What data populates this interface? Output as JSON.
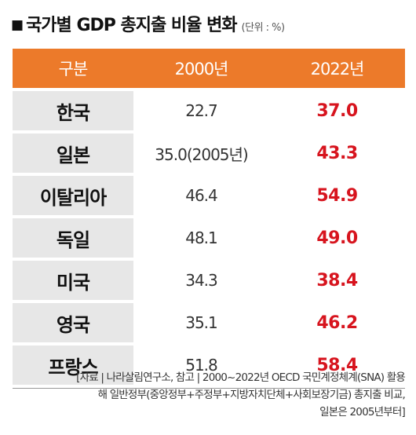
{
  "title": {
    "marker": "■",
    "text": "국가별 GDP 총지출 비율 변화",
    "unit": "(단위 : %)"
  },
  "table": {
    "headers": [
      "구분",
      "2000년",
      "2022년"
    ],
    "rows": [
      {
        "country": "한국",
        "y2000": "22.7",
        "y2022": "37.0"
      },
      {
        "country": "일본",
        "y2000": "35.0(2005년)",
        "y2022": "43.3"
      },
      {
        "country": "이탈리아",
        "y2000": "46.4",
        "y2022": "54.9"
      },
      {
        "country": "독일",
        "y2000": "48.1",
        "y2022": "49.0"
      },
      {
        "country": "미국",
        "y2000": "34.3",
        "y2022": "38.4"
      },
      {
        "country": "영국",
        "y2000": "35.1",
        "y2022": "46.2"
      },
      {
        "country": "프랑스",
        "y2000": "51.8",
        "y2022": "58.4"
      }
    ]
  },
  "footnote": {
    "line1": "[자료 | 나라살림연구소, 참고 | 2000~2022년 OECD 국민계정체계(SNA) 활용",
    "line2": "해 일반정부(중앙정부+주정부+지방자치단체+사회보장기금) 총지출 비교,",
    "line3": "일본은 2005년부터]"
  },
  "colors": {
    "header_bg": "#ec7a2a",
    "name_cell_bg": "#e7e7e7",
    "highlight_value": "#d7141e"
  }
}
